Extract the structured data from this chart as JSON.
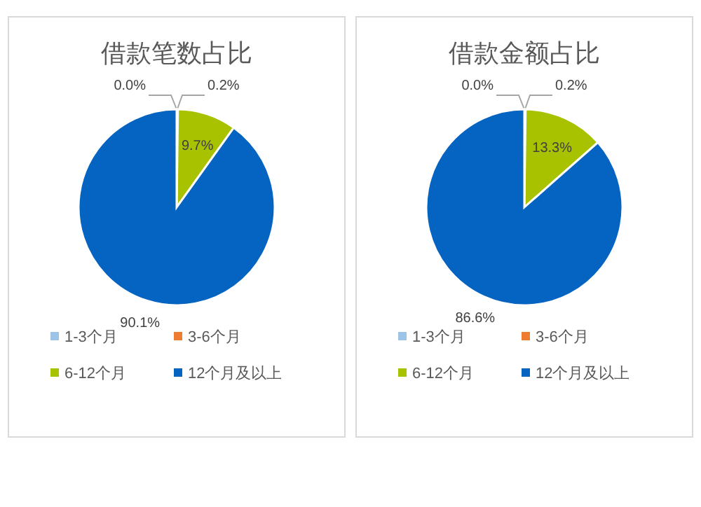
{
  "chart_data": [
    {
      "type": "pie",
      "title": "借款笔数占比",
      "categories": [
        "1-3个月",
        "3-6个月",
        "6-12个月",
        "12个月及以上"
      ],
      "values": [
        0.0,
        0.2,
        9.7,
        90.1
      ],
      "value_labels": [
        "0.0%",
        "0.2%",
        "9.7%",
        "90.1%"
      ],
      "colors": [
        "#9dc3e6",
        "#ed7d31",
        "#a9c200",
        "#0563c1"
      ],
      "legend": "bottom"
    },
    {
      "type": "pie",
      "title": "借款金额占比",
      "categories": [
        "1-3个月",
        "3-6个月",
        "6-12个月",
        "12个月及以上"
      ],
      "values": [
        0.0,
        0.2,
        13.3,
        86.6
      ],
      "value_labels": [
        "0.0%",
        "0.2%",
        "13.3%",
        "86.6%"
      ],
      "colors": [
        "#9dc3e6",
        "#ed7d31",
        "#a9c200",
        "#0563c1"
      ],
      "legend": "bottom"
    }
  ]
}
